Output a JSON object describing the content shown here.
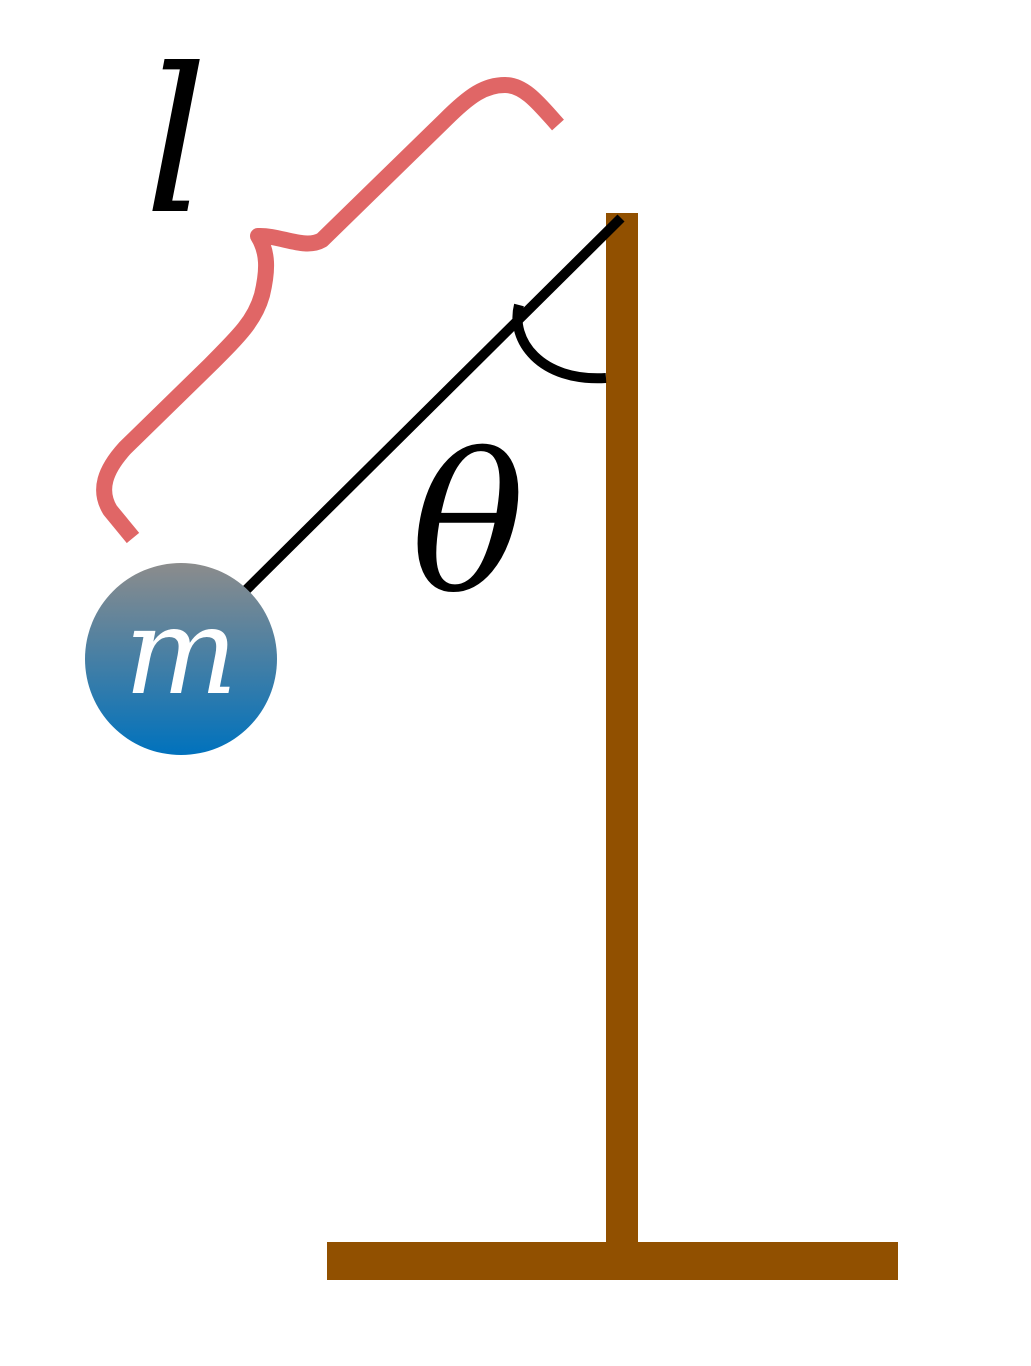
{
  "labels": {
    "length": "l",
    "angle": "θ",
    "mass": "m"
  },
  "colors": {
    "stand": "#915000",
    "rod": "#000000",
    "brace": "#e06666",
    "mass_top": "#8c8c8c",
    "mass_bottom": "#0072bd",
    "mass_label": "#ffffff",
    "text": "#000000"
  }
}
